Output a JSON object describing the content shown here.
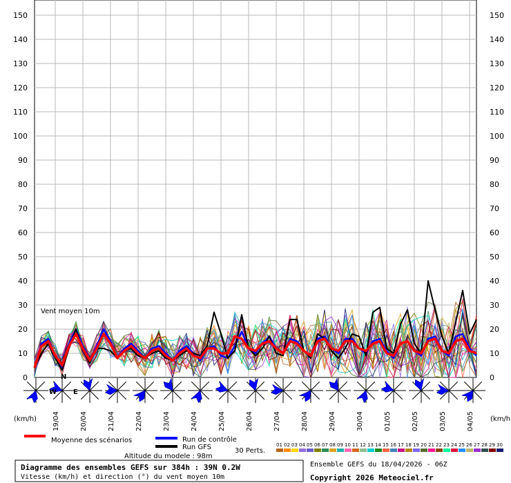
{
  "chart_data": {
    "type": "line",
    "title": "Diagramme des ensembles GEFS sur 384h : 39N 0.2W",
    "subtitle": "Vitesse (km/h) et direction (°) du vent moyen 10m",
    "panel_label": "Vent moyen 10m",
    "unit_left": "(km/h)",
    "unit_right": "(km/h)",
    "ylim": [
      0,
      150
    ],
    "y_ticks": [
      0,
      10,
      20,
      30,
      40,
      50,
      60,
      70,
      80,
      90,
      100,
      110,
      120,
      130,
      140,
      150
    ],
    "grid": true,
    "x_day_labels": [
      "19/04",
      "20/04",
      "21/04",
      "22/04",
      "23/04",
      "24/04",
      "25/04",
      "26/04",
      "27/04",
      "28/04",
      "29/04",
      "30/04",
      "01/05",
      "02/05",
      "03/05",
      "04/05"
    ],
    "step_hours": 6,
    "n_steps": 65,
    "series": [
      {
        "name": "Moyenne des scénarios",
        "color": "#ff0000",
        "values": [
          4,
          13,
          15,
          9,
          5,
          13,
          18,
          12,
          7,
          12,
          18,
          14,
          8,
          11,
          13,
          10,
          8,
          11,
          12,
          9,
          7,
          10,
          12,
          9,
          8,
          12,
          12,
          10,
          10,
          17,
          16,
          12,
          11,
          14,
          15,
          12,
          10,
          15,
          14,
          11,
          9,
          15,
          16,
          12,
          11,
          15,
          15,
          12,
          11,
          14,
          15,
          10,
          9,
          14,
          15,
          11,
          10,
          15,
          16,
          11,
          10,
          15,
          16,
          11,
          10
        ]
      },
      {
        "name": "Run de contrôle",
        "color": "#0000ff",
        "values": [
          4,
          14,
          16,
          9,
          4,
          14,
          20,
          13,
          7,
          13,
          20,
          15,
          8,
          12,
          14,
          11,
          8,
          12,
          13,
          10,
          7,
          11,
          13,
          10,
          7,
          12,
          13,
          9,
          8,
          13,
          19,
          12,
          10,
          14,
          17,
          12,
          10,
          16,
          15,
          11,
          9,
          16,
          17,
          12,
          10,
          16,
          16,
          12,
          10,
          15,
          16,
          11,
          8,
          14,
          15,
          11,
          9,
          16,
          17,
          11,
          9,
          17,
          18,
          12,
          9
        ]
      },
      {
        "name": "Run GFS",
        "color": "#000000",
        "values": [
          4,
          10,
          14,
          8,
          3,
          12,
          20,
          11,
          6,
          12,
          12,
          11,
          8,
          11,
          12,
          9,
          8,
          10,
          11,
          8,
          7,
          9,
          11,
          10,
          9,
          13,
          27,
          18,
          8,
          11,
          26,
          12,
          9,
          12,
          17,
          10,
          9,
          24,
          24,
          11,
          8,
          18,
          16,
          11,
          8,
          12,
          18,
          17,
          9,
          27,
          29,
          12,
          10,
          22,
          28,
          14,
          10,
          40,
          28,
          17,
          10,
          23,
          36,
          18,
          24
        ]
      }
    ],
    "perturbations": {
      "label": "30 Perts.",
      "numbers": [
        "01",
        "02",
        "03",
        "04",
        "05",
        "06",
        "07",
        "08",
        "09",
        "10",
        "11",
        "12",
        "13",
        "14",
        "15",
        "16",
        "17",
        "18",
        "19",
        "20",
        "21",
        "22",
        "23",
        "24",
        "25",
        "26",
        "27",
        "28",
        "29",
        "30"
      ],
      "colors": [
        "#b5651d",
        "#ff8c00",
        "#ffd700",
        "#9370db",
        "#6a5acd",
        "#808000",
        "#2e8b57",
        "#daa520",
        "#20b2aa",
        "#ff69b4",
        "#d2691e",
        "#8fbc8f",
        "#00ced1",
        "#228b22",
        "#ff6347",
        "#4682b4",
        "#c71585",
        "#b8860b",
        "#7b68ee",
        "#556b2f",
        "#ff1493",
        "#8b4513",
        "#00fa9a",
        "#dc143c",
        "#1e90ff",
        "#bdb76b",
        "#9932cc",
        "#2f4f4f",
        "#800000",
        "#191970"
      ]
    },
    "wind_roses_at": [
      "18/04",
      "19/04",
      "20/04",
      "21/04",
      "22/04",
      "23/04",
      "24/04",
      "25/04",
      "26/04",
      "27/04",
      "28/04",
      "29/04",
      "30/04",
      "01/05",
      "02/05",
      "03/05",
      "04/05"
    ],
    "compass_letters": {
      "n": "N",
      "w": "W",
      "e": "E"
    }
  },
  "legend": {
    "mean_label": "Moyenne des scénarios",
    "control_label": "Run de contrôle",
    "gfs_label": "Run GFS",
    "perts_label": "30 Perts."
  },
  "footer": {
    "altitude": "Altitude du modele : 98m",
    "title": "Diagramme des ensembles GEFS sur 384h : 39N 0.2W",
    "subtitle": "Vitesse (km/h) et direction (°) du vent moyen 10m",
    "ensemble": "Ensemble GEFS du 18/04/2026 - 06Z",
    "copyright": "Copyright 2026 Meteociel.fr"
  }
}
